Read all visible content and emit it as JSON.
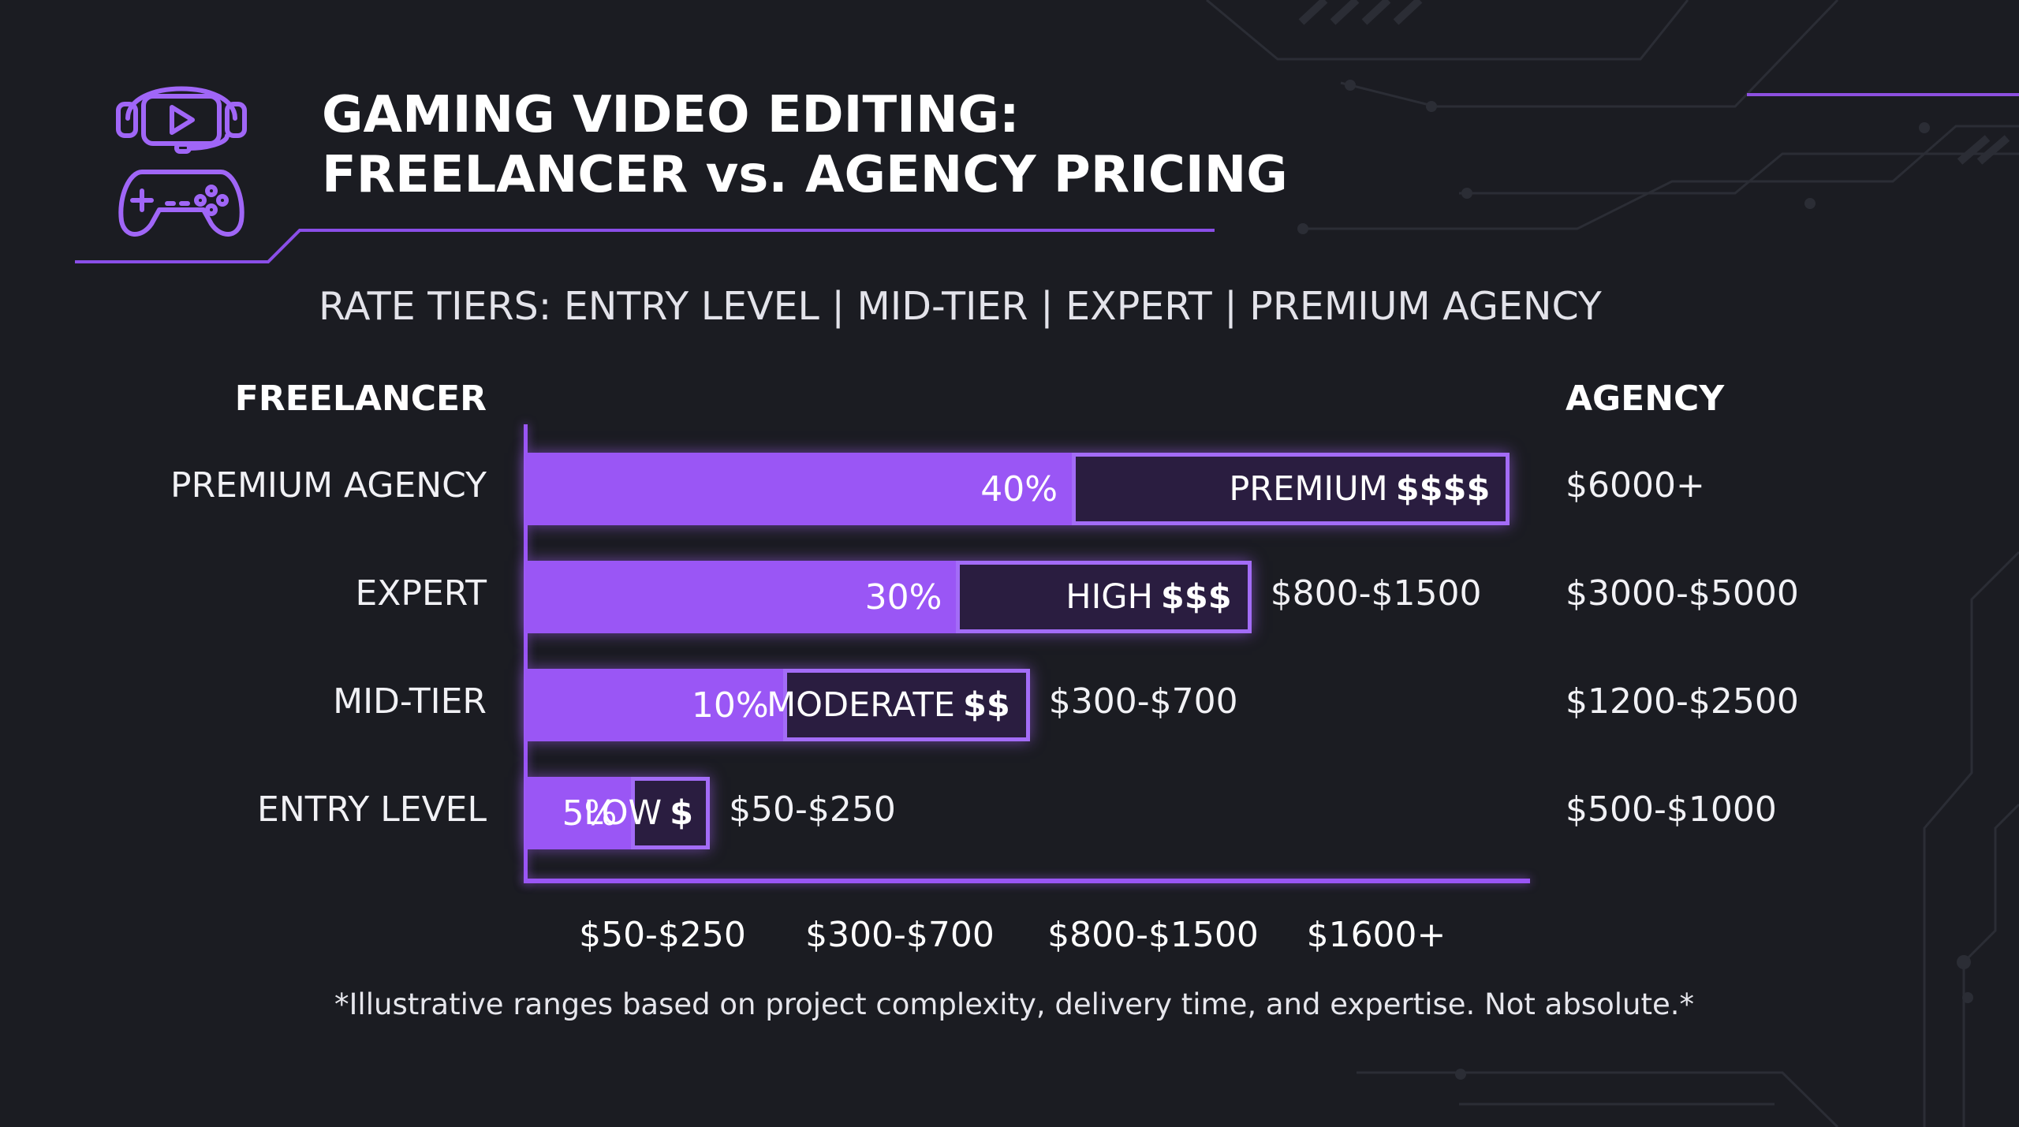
{
  "title": {
    "line1": "GAMING VIDEO EDITING:",
    "line2": "FREELANCER vs. AGENCY PRICING"
  },
  "subtitle": "RATE TIERS: ENTRY LEVEL | MID-TIER | EXPERT | PREMIUM AGENCY",
  "icons": {
    "logo": "gamer-headset-controller-icon"
  },
  "colors": {
    "accent": "#9a56f5",
    "box_bg": "#2a1d40",
    "background": "#1b1c22"
  },
  "footnote": "*Illustrative ranges based on project complexity, delivery time, and expertise. Not absolute.*",
  "chart_data": {
    "type": "bar",
    "orientation": "horizontal",
    "column_headers": {
      "left": "FREELANCER",
      "right": "AGENCY"
    },
    "rows": [
      {
        "label": "PREMIUM AGENCY",
        "percent": 40,
        "percent_label": "40%",
        "tier_label": "PREMIUM",
        "tier_symbol": "$$$$",
        "freelancer_range": "",
        "agency_range": "$6000+",
        "bar_extent": 4.0
      },
      {
        "label": "EXPERT",
        "percent": 30,
        "percent_label": "30%",
        "tier_label": "HIGH",
        "tier_symbol": "$$$",
        "freelancer_range": "$800-$1500",
        "agency_range": "$3000-$5000",
        "bar_extent": 2.95
      },
      {
        "label": "MID-TIER",
        "percent": 10,
        "percent_label": "10%",
        "tier_label": "MODERATE",
        "tier_symbol": "$$",
        "freelancer_range": "$300-$700",
        "agency_range": "$1200-$2500",
        "bar_extent": 2.05
      },
      {
        "label": "ENTRY LEVEL",
        "percent": 5,
        "percent_label": "5%",
        "tier_label": "LOW",
        "tier_symbol": "$",
        "freelancer_range": "$50-$250",
        "agency_range": "$500-$1000",
        "bar_extent": 0.75
      }
    ],
    "x_tick_labels": [
      "$50-$250",
      "$300-$700",
      "$800-$1500",
      "$1600+"
    ],
    "xlim": [
      0,
      4.05
    ],
    "grid": false,
    "legend": "none"
  }
}
